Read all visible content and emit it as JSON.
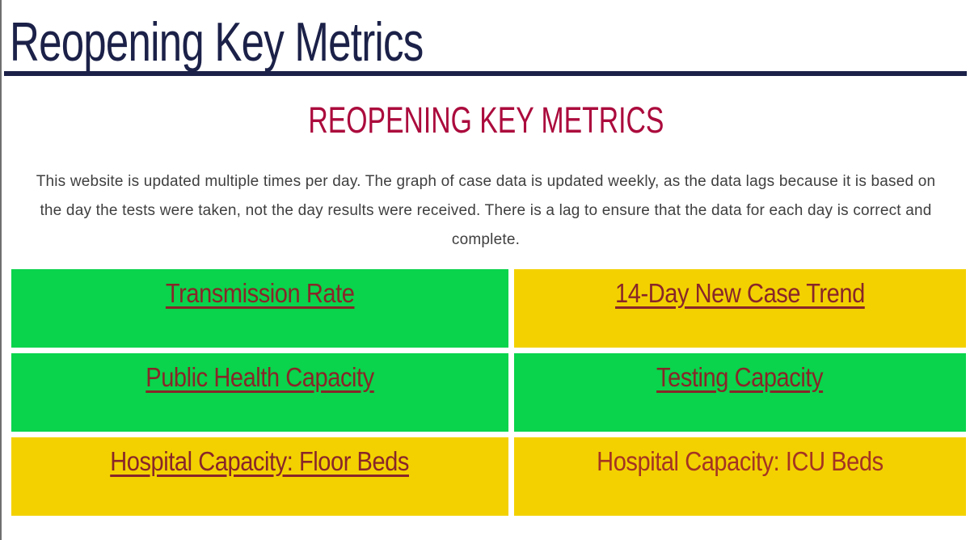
{
  "header": {
    "title": "Reopening Key Metrics"
  },
  "main": {
    "heading": "REOPENING KEY METRICS",
    "intro_lines": [
      "This website is updated multiple times per day. The graph of case data is updated weekly, as the data lags because it is based on",
      "the day the tests were taken, not the day results were received. There is a lag to ensure that the data for each day is correct and",
      "complete."
    ]
  },
  "colors": {
    "header_navy": "#1b2148",
    "heading_crimson": "#ab0b3d",
    "intro_gray": "#3f3f3f",
    "status_green": "#09d44c",
    "status_yellow": "#f3d100",
    "link_maroon": "#882629",
    "plain_red": "#a43422"
  },
  "metrics": [
    {
      "label": "Transmission Rate",
      "status": "green",
      "bg": "#09d44c",
      "color": "#882629",
      "underlined": true
    },
    {
      "label": "14-Day New Case Trend",
      "status": "yellow",
      "bg": "#f3d100",
      "color": "#882629",
      "underlined": true
    },
    {
      "label": "Public Health Capacity",
      "status": "green",
      "bg": "#09d44c",
      "color": "#882629",
      "underlined": true
    },
    {
      "label": "Testing Capacity",
      "status": "green",
      "bg": "#09d44c",
      "color": "#882629",
      "underlined": true
    },
    {
      "label": "Hospital Capacity: Floor Beds",
      "status": "yellow",
      "bg": "#f3d100",
      "color": "#882629",
      "underlined": true
    },
    {
      "label": "Hospital Capacity: ICU Beds",
      "status": "yellow",
      "bg": "#f3d100",
      "color": "#a43422",
      "underlined": false
    }
  ]
}
